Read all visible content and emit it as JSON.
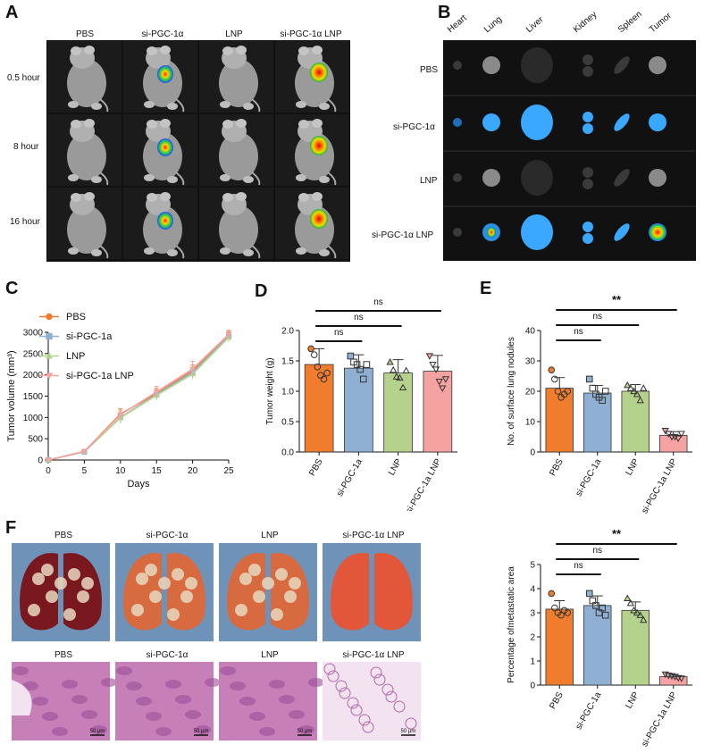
{
  "panels": {
    "A": "A",
    "B": "B",
    "C": "C",
    "D": "D",
    "E": "E",
    "F": "F"
  },
  "panelA": {
    "columns": [
      "PBS",
      "si-PGC-1α",
      "LNP",
      "si-PGC-1α LNP"
    ],
    "rows": [
      "0.5 hour",
      "8 hour",
      "16 hour"
    ],
    "signal": [
      [
        0,
        1,
        0,
        2
      ],
      [
        0,
        1,
        0,
        2
      ],
      [
        0,
        1,
        0,
        2
      ]
    ]
  },
  "panelB": {
    "organs": [
      "Heart",
      "Lung",
      "Liver",
      "Kidney",
      "Spleen",
      "Tumor"
    ],
    "rows": [
      "PBS",
      "si-PGC-1α",
      "LNP",
      "si-PGC-1α LNP"
    ]
  },
  "panelF": {
    "columns": [
      "PBS",
      "si-PGC-1α",
      "LNP",
      "si-PGC-1α LNP"
    ],
    "scale_bar": "50 μm"
  },
  "colors": {
    "PBS": "#ef7d2d",
    "si": "#8fb0d2",
    "LNP": "#b5d28c",
    "siLNP": "#f4a2a2"
  },
  "chart_data": [
    {
      "id": "C",
      "type": "line",
      "xlabel": "Days",
      "ylabel": "Tumor volume (mm³)",
      "xlim": [
        0,
        25
      ],
      "ylim": [
        0,
        3000
      ],
      "xticks": [
        0,
        5,
        10,
        15,
        20,
        25
      ],
      "yticks": [
        0,
        500,
        1000,
        1500,
        2000,
        2500,
        3000
      ],
      "x": [
        0,
        5,
        10,
        15,
        20,
        25
      ],
      "legend_position": "top-left",
      "series": [
        {
          "name": "PBS",
          "color": "#ef7d2d",
          "marker": "circle",
          "values": [
            0,
            200,
            1080,
            1560,
            2100,
            2920
          ],
          "err": [
            0,
            30,
            120,
            120,
            130,
            100
          ]
        },
        {
          "name": "si-PGC-1a",
          "color": "#8fb0d2",
          "marker": "square",
          "values": [
            0,
            190,
            1000,
            1540,
            2060,
            2900
          ],
          "err": [
            0,
            30,
            120,
            110,
            110,
            100
          ]
        },
        {
          "name": "LNP",
          "color": "#b5d28c",
          "marker": "triangle",
          "values": [
            0,
            195,
            990,
            1520,
            2020,
            2880
          ],
          "err": [
            0,
            30,
            130,
            120,
            120,
            110
          ]
        },
        {
          "name": "si-PGC-1a LNP",
          "color": "#f4a2a2",
          "marker": "triangle-down",
          "values": [
            0,
            205,
            1060,
            1600,
            2140,
            2950
          ],
          "err": [
            0,
            30,
            110,
            130,
            180,
            100
          ]
        }
      ]
    },
    {
      "id": "D",
      "type": "bar",
      "ylabel": "Tumor weight (g)",
      "ylim": [
        0,
        2.0
      ],
      "yticks": [
        "0.0",
        "0.5",
        "1.0",
        "1.5",
        "2.0"
      ],
      "categories": [
        "PBS",
        "si-PGC-1a",
        "LNP",
        "si-PGC-1a LNP"
      ],
      "values": [
        1.44,
        1.38,
        1.3,
        1.33
      ],
      "err": [
        0.26,
        0.22,
        0.22,
        0.26
      ],
      "points": [
        [
          1.7,
          1.6,
          1.4,
          1.26,
          1.2,
          1.3
        ],
        [
          1.58,
          1.48,
          1.44,
          1.36,
          1.2,
          1.44
        ],
        [
          1.48,
          1.35,
          1.24,
          1.22,
          1.06,
          1.34
        ],
        [
          1.58,
          1.44,
          1.36,
          1.16,
          1.05,
          1.2
        ]
      ],
      "sig": [
        {
          "from": 0,
          "to": 1,
          "label": "ns"
        },
        {
          "from": 0,
          "to": 2,
          "label": "ns"
        },
        {
          "from": 0,
          "to": 3,
          "label": "ns"
        }
      ]
    },
    {
      "id": "E1",
      "type": "bar",
      "ylabel": "No. of surface lung nodules",
      "ylim": [
        0,
        40
      ],
      "yticks": [
        "0",
        "10",
        "20",
        "30",
        "40"
      ],
      "categories": [
        "PBS",
        "si-PGC-1a",
        "LNP",
        "si-PGC-1a LNP"
      ],
      "values": [
        21,
        19.4,
        20,
        5.5
      ],
      "err": [
        3.5,
        2.5,
        2.2,
        1.2
      ],
      "points": [
        [
          27,
          24,
          20,
          18,
          19,
          20
        ],
        [
          24,
          21,
          19,
          18,
          17,
          20
        ],
        [
          22,
          21,
          20,
          19,
          17,
          21
        ],
        [
          7,
          6,
          5,
          5,
          4.5,
          6
        ]
      ],
      "sig": [
        {
          "from": 0,
          "to": 1,
          "label": "ns"
        },
        {
          "from": 0,
          "to": 2,
          "label": "ns"
        },
        {
          "from": 0,
          "to": 3,
          "label": "**"
        }
      ]
    },
    {
      "id": "E2",
      "type": "bar",
      "ylabel": "Percentage ofmetastatic area",
      "ylim": [
        0,
        5
      ],
      "yticks": [
        "0",
        "1",
        "2",
        "3",
        "4",
        "5"
      ],
      "categories": [
        "PBS",
        "si-PGC-1a",
        "LNP",
        "si-PGC-1a LNP"
      ],
      "values": [
        3.15,
        3.3,
        3.1,
        0.35
      ],
      "err": [
        0.35,
        0.4,
        0.35,
        0.06
      ],
      "points": [
        [
          3.8,
          3.2,
          3.0,
          2.9,
          3.1,
          3.0
        ],
        [
          3.8,
          3.5,
          3.3,
          3.0,
          3.2,
          2.9
        ],
        [
          3.6,
          3.4,
          3.1,
          3.0,
          2.9,
          2.7
        ],
        [
          0.45,
          0.4,
          0.38,
          0.35,
          0.3,
          0.28
        ]
      ],
      "sig": [
        {
          "from": 0,
          "to": 1,
          "label": "ns"
        },
        {
          "from": 0,
          "to": 2,
          "label": "ns"
        },
        {
          "from": 0,
          "to": 3,
          "label": "**"
        }
      ]
    }
  ]
}
